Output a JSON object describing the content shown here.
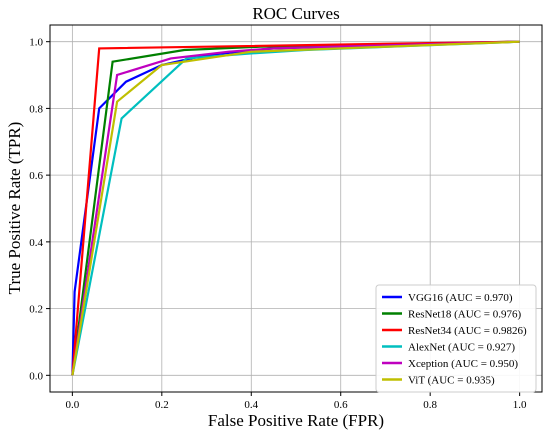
{
  "chart_data": {
    "type": "line",
    "title": "ROC Curves",
    "xlabel": "False Positive Rate (FPR)",
    "ylabel": "True Positive Rate (TPR)",
    "xlim": [
      -0.05,
      1.05
    ],
    "ylim": [
      -0.05,
      1.05
    ],
    "xticks": [
      "0.0",
      "0.2",
      "0.4",
      "0.6",
      "0.8",
      "1.0"
    ],
    "yticks": [
      "0.0",
      "0.2",
      "0.4",
      "0.6",
      "0.8",
      "1.0"
    ],
    "grid": true,
    "legend_position": "lower-right",
    "series": [
      {
        "name": "VGG16 (AUC = 0.970)",
        "color": "#0000ff",
        "x": [
          0.0,
          0.005,
          0.06,
          0.12,
          0.2,
          0.3,
          0.45,
          0.7,
          1.0
        ],
        "y": [
          0.0,
          0.25,
          0.8,
          0.88,
          0.93,
          0.96,
          0.98,
          0.99,
          1.0
        ]
      },
      {
        "name": "ResNet18 (AUC = 0.976)",
        "color": "#008000",
        "x": [
          0.0,
          0.09,
          0.25,
          0.42,
          1.0
        ],
        "y": [
          0.0,
          0.94,
          0.975,
          0.985,
          1.0
        ]
      },
      {
        "name": "ResNet34 (AUC = 0.9826)",
        "color": "#ff0000",
        "x": [
          0.0,
          0.06,
          1.0
        ],
        "y": [
          0.0,
          0.98,
          1.0
        ]
      },
      {
        "name": "AlexNet (AUC = 0.927)",
        "color": "#00bfbf",
        "x": [
          0.0,
          0.11,
          0.255,
          0.4,
          0.52,
          1.0
        ],
        "y": [
          0.0,
          0.77,
          0.95,
          0.965,
          0.975,
          1.0
        ]
      },
      {
        "name": "Xception (AUC = 0.950)",
        "color": "#bf00bf",
        "x": [
          0.0,
          0.1,
          0.22,
          0.35,
          0.45,
          1.0
        ],
        "y": [
          0.0,
          0.9,
          0.95,
          0.97,
          0.98,
          1.0
        ]
      },
      {
        "name": "ViT (AUC = 0.935)",
        "color": "#bfbf00",
        "x": [
          0.0,
          0.1,
          0.2,
          0.4,
          0.8,
          1.0
        ],
        "y": [
          0.0,
          0.82,
          0.93,
          0.97,
          0.99,
          1.0
        ]
      }
    ]
  }
}
